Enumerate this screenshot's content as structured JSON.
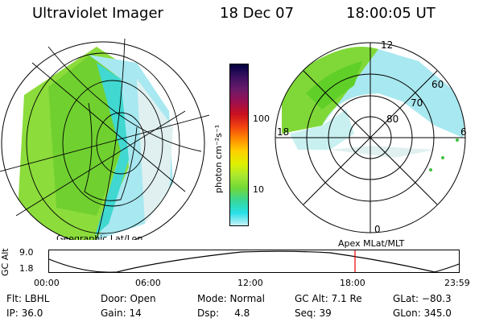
{
  "header": {
    "instrument": "Ultraviolet Imager",
    "date": "18 Dec 07",
    "time": "18:00:05 UT"
  },
  "colorbar": {
    "unit_label": "photon cm⁻²s⁻¹",
    "ticks": [
      "100",
      "10"
    ],
    "colors": [
      "#000040",
      "#3a1060",
      "#6a1a6a",
      "#9a1050",
      "#c81020",
      "#f04010",
      "#ff8a00",
      "#ffd000",
      "#e0f000",
      "#a8e830",
      "#70d838",
      "#38d898",
      "#28e0e8",
      "#c8f0f8"
    ]
  },
  "geo_map": {
    "label": "Geographic Lat/Lon"
  },
  "polar_plot": {
    "label": "Apex  MLat/MLT",
    "mlt_labels": {
      "top": "12",
      "left": "18",
      "right": "6",
      "bottom": "0"
    },
    "lat_labels": [
      "60",
      "70",
      "80"
    ]
  },
  "altitude_strip": {
    "ylabel": "GC Alt",
    "ymax": "9.0",
    "ymin": "1.8",
    "time_ticks": [
      "00:00",
      "06:00",
      "12:00",
      "18:00",
      "23:59"
    ],
    "marker_time": "18:00"
  },
  "status": {
    "flt": "Flt: LBHL",
    "ip": "IP: 36.0",
    "door": "Door: Open",
    "gain": "Gain: 14",
    "mode": "Mode: Normal",
    "dsp": "Dsp:     4.8",
    "gc_alt": "GC Alt: 7.1 Re",
    "seq": "Seq: 39",
    "glat": "GLat: −80.3",
    "glon": "GLon: 345.0"
  }
}
